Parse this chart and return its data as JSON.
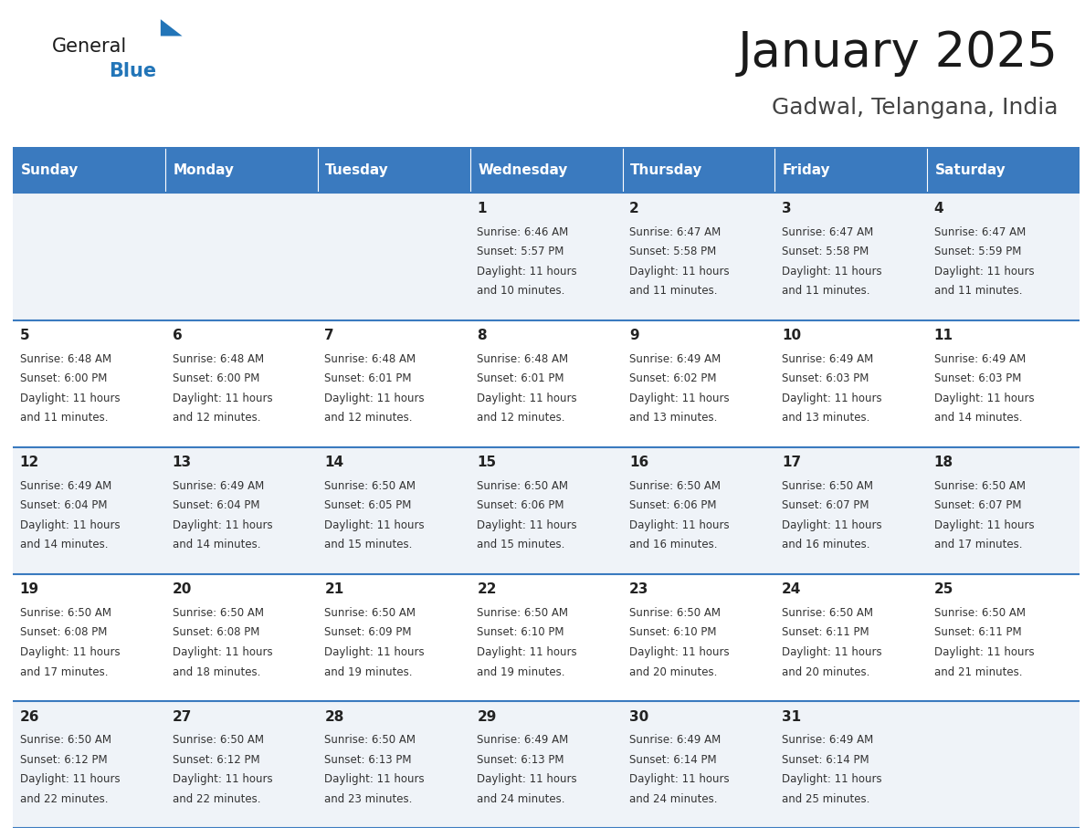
{
  "title": "January 2025",
  "subtitle": "Gadwal, Telangana, India",
  "header_bg": "#3a7abf",
  "header_text_color": "#ffffff",
  "weekdays": [
    "Sunday",
    "Monday",
    "Tuesday",
    "Wednesday",
    "Thursday",
    "Friday",
    "Saturday"
  ],
  "row_colors": [
    "#eff3f8",
    "#ffffff"
  ],
  "cell_border_color": "#3a7abf",
  "day_number_color": "#222222",
  "day_text_color": "#333333",
  "calendar": [
    [
      {
        "day": "",
        "sunrise": "",
        "sunset": "",
        "daylight": ""
      },
      {
        "day": "",
        "sunrise": "",
        "sunset": "",
        "daylight": ""
      },
      {
        "day": "",
        "sunrise": "",
        "sunset": "",
        "daylight": ""
      },
      {
        "day": "1",
        "sunrise": "6:46 AM",
        "sunset": "5:57 PM",
        "daylight": "11 hours and 10 minutes."
      },
      {
        "day": "2",
        "sunrise": "6:47 AM",
        "sunset": "5:58 PM",
        "daylight": "11 hours and 11 minutes."
      },
      {
        "day": "3",
        "sunrise": "6:47 AM",
        "sunset": "5:58 PM",
        "daylight": "11 hours and 11 minutes."
      },
      {
        "day": "4",
        "sunrise": "6:47 AM",
        "sunset": "5:59 PM",
        "daylight": "11 hours and 11 minutes."
      }
    ],
    [
      {
        "day": "5",
        "sunrise": "6:48 AM",
        "sunset": "6:00 PM",
        "daylight": "11 hours and 11 minutes."
      },
      {
        "day": "6",
        "sunrise": "6:48 AM",
        "sunset": "6:00 PM",
        "daylight": "11 hours and 12 minutes."
      },
      {
        "day": "7",
        "sunrise": "6:48 AM",
        "sunset": "6:01 PM",
        "daylight": "11 hours and 12 minutes."
      },
      {
        "day": "8",
        "sunrise": "6:48 AM",
        "sunset": "6:01 PM",
        "daylight": "11 hours and 12 minutes."
      },
      {
        "day": "9",
        "sunrise": "6:49 AM",
        "sunset": "6:02 PM",
        "daylight": "11 hours and 13 minutes."
      },
      {
        "day": "10",
        "sunrise": "6:49 AM",
        "sunset": "6:03 PM",
        "daylight": "11 hours and 13 minutes."
      },
      {
        "day": "11",
        "sunrise": "6:49 AM",
        "sunset": "6:03 PM",
        "daylight": "11 hours and 14 minutes."
      }
    ],
    [
      {
        "day": "12",
        "sunrise": "6:49 AM",
        "sunset": "6:04 PM",
        "daylight": "11 hours and 14 minutes."
      },
      {
        "day": "13",
        "sunrise": "6:49 AM",
        "sunset": "6:04 PM",
        "daylight": "11 hours and 14 minutes."
      },
      {
        "day": "14",
        "sunrise": "6:50 AM",
        "sunset": "6:05 PM",
        "daylight": "11 hours and 15 minutes."
      },
      {
        "day": "15",
        "sunrise": "6:50 AM",
        "sunset": "6:06 PM",
        "daylight": "11 hours and 15 minutes."
      },
      {
        "day": "16",
        "sunrise": "6:50 AM",
        "sunset": "6:06 PM",
        "daylight": "11 hours and 16 minutes."
      },
      {
        "day": "17",
        "sunrise": "6:50 AM",
        "sunset": "6:07 PM",
        "daylight": "11 hours and 16 minutes."
      },
      {
        "day": "18",
        "sunrise": "6:50 AM",
        "sunset": "6:07 PM",
        "daylight": "11 hours and 17 minutes."
      }
    ],
    [
      {
        "day": "19",
        "sunrise": "6:50 AM",
        "sunset": "6:08 PM",
        "daylight": "11 hours and 17 minutes."
      },
      {
        "day": "20",
        "sunrise": "6:50 AM",
        "sunset": "6:08 PM",
        "daylight": "11 hours and 18 minutes."
      },
      {
        "day": "21",
        "sunrise": "6:50 AM",
        "sunset": "6:09 PM",
        "daylight": "11 hours and 19 minutes."
      },
      {
        "day": "22",
        "sunrise": "6:50 AM",
        "sunset": "6:10 PM",
        "daylight": "11 hours and 19 minutes."
      },
      {
        "day": "23",
        "sunrise": "6:50 AM",
        "sunset": "6:10 PM",
        "daylight": "11 hours and 20 minutes."
      },
      {
        "day": "24",
        "sunrise": "6:50 AM",
        "sunset": "6:11 PM",
        "daylight": "11 hours and 20 minutes."
      },
      {
        "day": "25",
        "sunrise": "6:50 AM",
        "sunset": "6:11 PM",
        "daylight": "11 hours and 21 minutes."
      }
    ],
    [
      {
        "day": "26",
        "sunrise": "6:50 AM",
        "sunset": "6:12 PM",
        "daylight": "11 hours and 22 minutes."
      },
      {
        "day": "27",
        "sunrise": "6:50 AM",
        "sunset": "6:12 PM",
        "daylight": "11 hours and 22 minutes."
      },
      {
        "day": "28",
        "sunrise": "6:50 AM",
        "sunset": "6:13 PM",
        "daylight": "11 hours and 23 minutes."
      },
      {
        "day": "29",
        "sunrise": "6:49 AM",
        "sunset": "6:13 PM",
        "daylight": "11 hours and 24 minutes."
      },
      {
        "day": "30",
        "sunrise": "6:49 AM",
        "sunset": "6:14 PM",
        "daylight": "11 hours and 24 minutes."
      },
      {
        "day": "31",
        "sunrise": "6:49 AM",
        "sunset": "6:14 PM",
        "daylight": "11 hours and 25 minutes."
      },
      {
        "day": "",
        "sunrise": "",
        "sunset": "",
        "daylight": ""
      }
    ]
  ],
  "logo_triangle_color": "#2275b8",
  "title_fontsize": 38,
  "subtitle_fontsize": 18,
  "header_fontsize": 11,
  "day_num_fontsize": 11,
  "cell_text_fontsize": 8.5
}
